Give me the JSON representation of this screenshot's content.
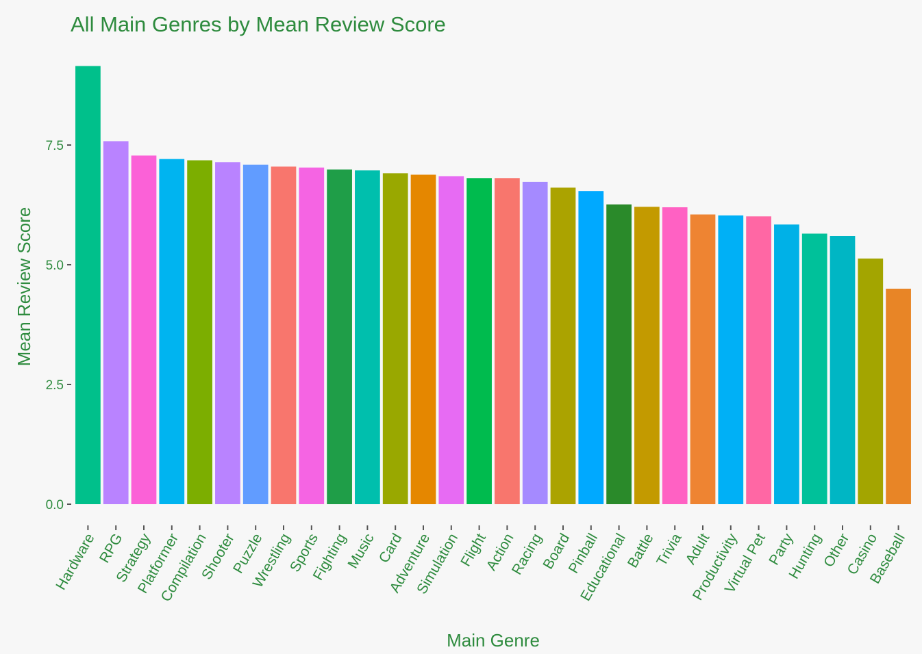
{
  "chart_data": {
    "type": "bar",
    "title": "All Main Genres by Mean Review Score",
    "xlabel": "Main Genre",
    "ylabel": "Mean Review Score",
    "ylim": [
      0,
      9.1
    ],
    "yticks": [
      "0.0",
      "2.5",
      "5.0",
      "7.5"
    ],
    "ytick_values": [
      0,
      2.5,
      5.0,
      7.5
    ],
    "grid": false,
    "legend": "none",
    "categories": [
      "Hardware",
      "RPG",
      "Strategy",
      "Platformer",
      "Compilation",
      "Shooter",
      "Puzzle",
      "Wrestling",
      "Sports",
      "Fighting",
      "Music",
      "Card",
      "Adventure",
      "Simulation",
      "Flight",
      "Action",
      "Racing",
      "Board",
      "Pinball",
      "Educational",
      "Battle",
      "Trivia",
      "Adult",
      "Productivity",
      "Virtual Pet",
      "Party",
      "Hunting",
      "Other",
      "Casino",
      "Baseball"
    ],
    "values": [
      9.15,
      7.58,
      7.28,
      7.21,
      7.18,
      7.14,
      7.09,
      7.05,
      7.03,
      6.99,
      6.97,
      6.91,
      6.88,
      6.85,
      6.81,
      6.81,
      6.73,
      6.61,
      6.54,
      6.26,
      6.21,
      6.2,
      6.05,
      6.03,
      6.01,
      5.84,
      5.65,
      5.6,
      5.13,
      4.5
    ],
    "colors": [
      "#00c08b",
      "#b983ff",
      "#fb61d7",
      "#00b4f0",
      "#7cae00",
      "#b983ff",
      "#619cff",
      "#f8766d",
      "#f564e3",
      "#1f9e48",
      "#00bfad",
      "#99a800",
      "#e58700",
      "#e76bf3",
      "#00bb4e",
      "#f8766d",
      "#a58aff",
      "#aba300",
      "#00a9ff",
      "#2a8a2a",
      "#c39a00",
      "#ff61c3",
      "#ee8432",
      "#00b0f6",
      "#ff67a4",
      "#00b1e7",
      "#00c19a",
      "#00b6c4",
      "#a3a500",
      "#e88526"
    ]
  }
}
